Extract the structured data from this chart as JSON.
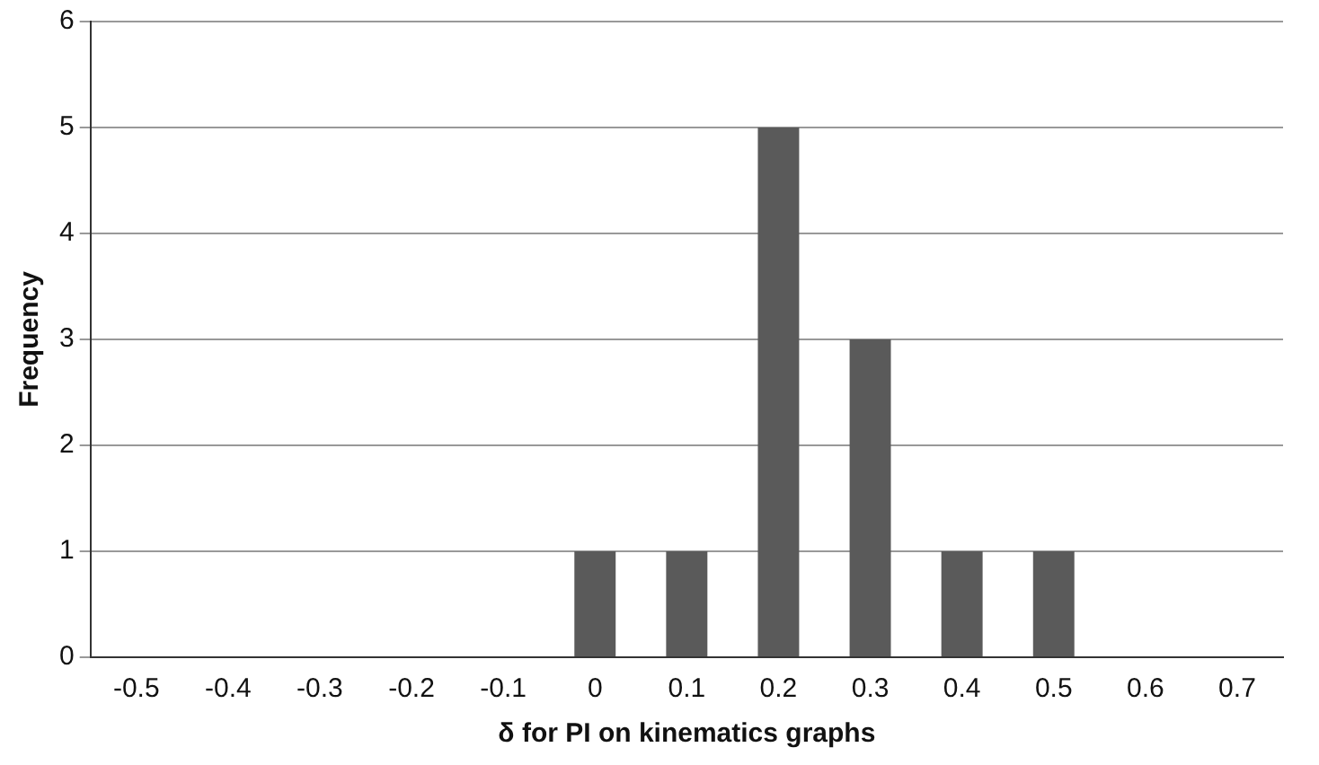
{
  "chart_data": {
    "type": "bar",
    "xlabel": "δ for PI on kinematics graphs",
    "ylabel": "Frequency",
    "categories": [
      "-0.5",
      "-0.4",
      "-0.3",
      "-0.2",
      "-0.1",
      "0",
      "0.1",
      "0.2",
      "0.3",
      "0.4",
      "0.5",
      "0.6",
      "0.7"
    ],
    "values": [
      0,
      0,
      0,
      0,
      0,
      1,
      1,
      5,
      3,
      1,
      1,
      0,
      0
    ],
    "color": "#5a5a5a",
    "ylim": [
      0,
      6
    ],
    "yticks": [
      0,
      1,
      2,
      3,
      4,
      5,
      6
    ],
    "grid": "y",
    "legend": false
  }
}
